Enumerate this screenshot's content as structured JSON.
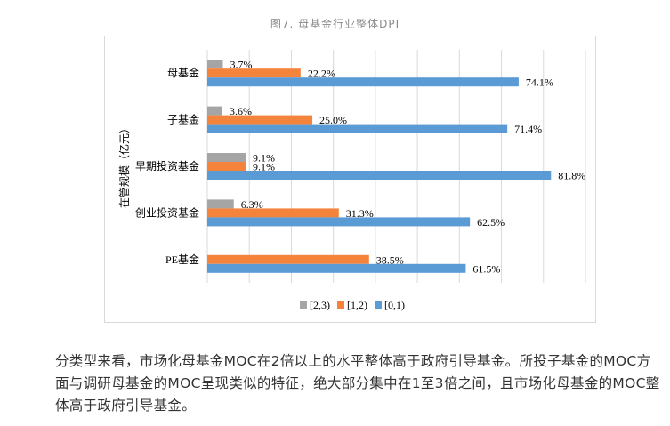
{
  "chart_data": {
    "type": "bar",
    "orientation": "horizontal",
    "title": "图7. 母基金行业整体DPI",
    "ylabel": "在管规模（亿元）",
    "xlabel": "",
    "categories": [
      "母基金",
      "子基金",
      "早期投资基金",
      "创业投资基金",
      "PE基金"
    ],
    "series": [
      {
        "name": "[2,3)",
        "color": "#a5a5a5",
        "values": [
          3.7,
          3.6,
          9.1,
          6.3,
          null
        ],
        "labels": [
          "3.7%",
          "3.6%",
          "9.1%",
          "6.3%",
          ""
        ]
      },
      {
        "name": "[1,2)",
        "color": "#f4843c",
        "values": [
          22.2,
          25.0,
          9.1,
          31.3,
          38.5
        ],
        "labels": [
          "22.2%",
          "25.0%",
          "9.1%",
          "31.3%",
          "38.5%"
        ]
      },
      {
        "name": "[0,1)",
        "color": "#5b9bd5",
        "values": [
          74.1,
          71.4,
          81.8,
          62.5,
          61.5
        ],
        "labels": [
          "74.1%",
          "71.4%",
          "81.8%",
          "62.5%",
          "61.5%"
        ]
      }
    ],
    "xlim": [
      0,
      90
    ],
    "x_unit": "%",
    "grid": true,
    "legend": "bottom"
  },
  "paragraph": "分类型来看，市场化母基金MOC在2倍以上的水平整体高于政府引导基金。所投子基金的MOC方面与调研母基金的MOC呈现类似的特征，绝大部分集中在1至3倍之间，且市场化母基金的MOC整体高于政府引导基金。"
}
